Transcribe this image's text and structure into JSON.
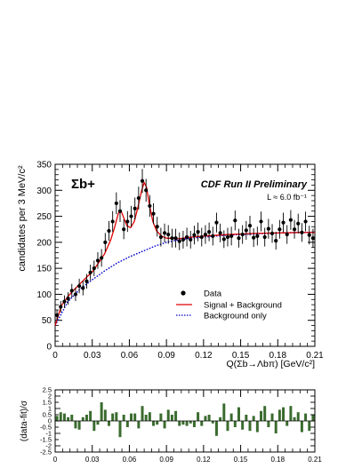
{
  "chart_data": [
    {
      "type": "scatter",
      "ylabel": "candidates per 3 MeV/c²",
      "xlabel": "Q(Σb→Λbπ) [GeV/c²]",
      "xlim": [
        0,
        0.21
      ],
      "ylim": [
        0,
        350
      ],
      "x_ticks": [
        "0",
        "0.03",
        "0.06",
        "0.09",
        "0.12",
        "0.15",
        "0.18",
        "0.21"
      ],
      "y_ticks": [
        "0",
        "50",
        "100",
        "150",
        "200",
        "250",
        "300",
        "350"
      ],
      "particle_label": "Σb+",
      "experiment_label": "CDF Run II Preliminary",
      "lumi_label": "L ≈ 6.0 fb⁻¹",
      "legend": {
        "position": "center-right",
        "entries": [
          {
            "label": "Data",
            "style": "marker",
            "color": "#000000"
          },
          {
            "label": "Signal + Background",
            "style": "solid",
            "color": "#e00000"
          },
          {
            "label": "Background only",
            "style": "dotted",
            "color": "#0000cc"
          }
        ]
      },
      "series": [
        {
          "name": "Data",
          "x": [
            0.0015,
            0.0045,
            0.0075,
            0.0105,
            0.0135,
            0.0165,
            0.0195,
            0.0225,
            0.0255,
            0.0285,
            0.0315,
            0.0345,
            0.0375,
            0.0405,
            0.0435,
            0.0465,
            0.0495,
            0.0525,
            0.0555,
            0.0585,
            0.0615,
            0.0645,
            0.0675,
            0.0705,
            0.0735,
            0.0765,
            0.0795,
            0.0825,
            0.0855,
            0.0885,
            0.0915,
            0.0945,
            0.0975,
            0.1005,
            0.1035,
            0.1065,
            0.1095,
            0.1125,
            0.1155,
            0.1185,
            0.1215,
            0.1245,
            0.1275,
            0.1305,
            0.1335,
            0.1365,
            0.1395,
            0.1425,
            0.1455,
            0.1485,
            0.1515,
            0.1545,
            0.1575,
            0.1605,
            0.1635,
            0.1665,
            0.1695,
            0.1725,
            0.1755,
            0.1785,
            0.1815,
            0.1845,
            0.1875,
            0.1905,
            0.1935,
            0.1965,
            0.1995,
            0.2025,
            0.2055,
            0.2085
          ],
          "y": [
            60,
            76,
            86,
            92,
            107,
            100,
            116,
            112,
            125,
            142,
            150,
            165,
            170,
            200,
            222,
            240,
            275,
            260,
            225,
            240,
            250,
            265,
            285,
            318,
            300,
            270,
            255,
            230,
            210,
            218,
            215,
            208,
            208,
            202,
            205,
            210,
            205,
            214,
            220,
            210,
            215,
            220,
            212,
            238,
            218,
            206,
            210,
            212,
            242,
            208,
            215,
            223,
            232,
            209,
            212,
            240,
            210,
            226,
            217,
            203,
            225,
            238,
            215,
            243,
            225,
            236,
            219,
            240,
            214,
            208
          ],
          "yerr": [
            10,
            11,
            12,
            12,
            13,
            13,
            14,
            14,
            14,
            15,
            15,
            16,
            17,
            18,
            19,
            20,
            21,
            21,
            19,
            20,
            20,
            21,
            22,
            23,
            22,
            21,
            20,
            19,
            18,
            18,
            18,
            18,
            18,
            17,
            17,
            18,
            17,
            18,
            18,
            18,
            18,
            18,
            18,
            19,
            18,
            17,
            18,
            18,
            19,
            18,
            18,
            18,
            19,
            18,
            18,
            19,
            18,
            19,
            18,
            17,
            18,
            19,
            18,
            19,
            18,
            19,
            18,
            19,
            18,
            18
          ]
        },
        {
          "name": "Signal + Background",
          "x": [
            0.0,
            0.005,
            0.01,
            0.015,
            0.02,
            0.025,
            0.03,
            0.035,
            0.04,
            0.045,
            0.048,
            0.051,
            0.053,
            0.055,
            0.058,
            0.061,
            0.064,
            0.067,
            0.07,
            0.072,
            0.074,
            0.076,
            0.079,
            0.082,
            0.086,
            0.09,
            0.1,
            0.11,
            0.12,
            0.14,
            0.16,
            0.18,
            0.2,
            0.21
          ],
          "y": [
            40,
            78,
            95,
            108,
            120,
            132,
            143,
            160,
            178,
            205,
            228,
            255,
            262,
            250,
            232,
            228,
            240,
            268,
            300,
            315,
            305,
            275,
            240,
            222,
            212,
            208,
            207,
            210,
            212,
            215,
            217,
            218,
            219,
            219
          ]
        },
        {
          "name": "Background only",
          "x": [
            0.0,
            0.01,
            0.02,
            0.03,
            0.04,
            0.05,
            0.06,
            0.07,
            0.08,
            0.09,
            0.1,
            0.11,
            0.12,
            0.14,
            0.16,
            0.18,
            0.2,
            0.21
          ],
          "y": [
            40,
            85,
            110,
            128,
            145,
            160,
            172,
            182,
            192,
            200,
            205,
            208,
            210,
            214,
            216,
            218,
            219,
            219
          ]
        }
      ]
    },
    {
      "type": "bar",
      "ylabel": "(data-fit)/σ",
      "xlim": [
        0,
        0.21
      ],
      "ylim": [
        -2.5,
        2.5
      ],
      "x_ticks": [
        "0",
        "0.03",
        "0.06",
        "0.09",
        "0.12",
        "0.15",
        "0.18",
        "0.21"
      ],
      "y_ticks": [
        "2.5",
        "2",
        "1.5",
        "1",
        "0.5",
        "0",
        "-0.5",
        "-1",
        "-1.5",
        "-2",
        "-2.5"
      ],
      "color": "#3a6b2e",
      "bin_width": 0.003,
      "series": [
        {
          "name": "",
          "x": [
            0.0015,
            0.0045,
            0.0075,
            0.0105,
            0.0135,
            0.0165,
            0.0195,
            0.0225,
            0.0255,
            0.0285,
            0.0315,
            0.0345,
            0.0375,
            0.0405,
            0.0435,
            0.0465,
            0.0495,
            0.0525,
            0.0555,
            0.0585,
            0.0615,
            0.0645,
            0.0675,
            0.0705,
            0.0735,
            0.0765,
            0.0795,
            0.0825,
            0.0855,
            0.0885,
            0.0915,
            0.0945,
            0.0975,
            0.1005,
            0.1035,
            0.1065,
            0.1095,
            0.1125,
            0.1155,
            0.1185,
            0.1215,
            0.1245,
            0.1275,
            0.1305,
            0.1335,
            0.1365,
            0.1395,
            0.1425,
            0.1455,
            0.1485,
            0.1515,
            0.1545,
            0.1575,
            0.1605,
            0.1635,
            0.1665,
            0.1695,
            0.1725,
            0.1755,
            0.1785,
            0.1815,
            0.1845,
            0.1875,
            0.1905,
            0.1935,
            0.1965,
            0.1995,
            0.2025,
            0.2055,
            0.2085
          ],
          "values": [
            0.4,
            0.7,
            0.6,
            0.3,
            0.5,
            -0.6,
            -0.7,
            0.3,
            0.5,
            0.8,
            -0.8,
            -0.3,
            1.5,
            0.9,
            -0.4,
            0.6,
            0.7,
            -1.3,
            0.5,
            -0.5,
            0.6,
            0.6,
            -0.6,
            1.2,
            0.5,
            0.7,
            -0.4,
            -0.3,
            0.6,
            -0.6,
            0.9,
            0.5,
            0.8,
            -0.4,
            -0.3,
            -0.4,
            -0.2,
            -0.5,
            0.7,
            -0.4,
            0.4,
            0.5,
            -0.2,
            -1.2,
            0.3,
            1.4,
            -0.8,
            0.6,
            -0.5,
            1.1,
            -0.7,
            0.5,
            -0.8,
            0.4,
            -0.9,
            0.8,
            1.2,
            -0.5,
            0.6,
            -1.0,
            0.9,
            1.1,
            -0.4,
            1.2,
            0.3,
            0.7,
            -0.9,
            0.6,
            -0.8,
            0.5
          ]
        }
      ]
    }
  ]
}
